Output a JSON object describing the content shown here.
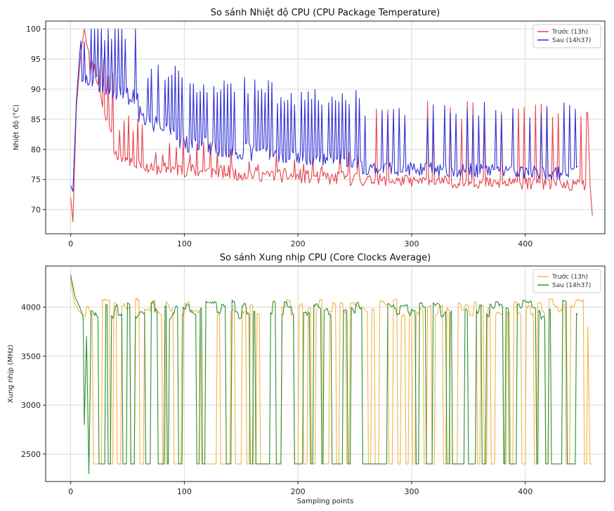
{
  "chart_data": [
    {
      "type": "line",
      "title": "So sánh Nhiệt độ CPU (CPU Package Temperature)",
      "xlabel": "",
      "ylabel": "Nhiệt độ (°C)",
      "xlim": [
        -22,
        470
      ],
      "ylim": [
        66,
        101.3
      ],
      "xticks": [
        0,
        100,
        200,
        300,
        400
      ],
      "yticks": [
        70,
        75,
        80,
        85,
        90,
        95,
        100
      ],
      "grid": true,
      "legend": "top-right",
      "series": [
        {
          "name": "Trước (13h)",
          "color": "#e8424b",
          "seed": 11,
          "n": 460,
          "decay_tau": 15,
          "segments": [
            {
              "start": 0,
              "ramp": [
                [
                  0,
                  72
                ],
                [
                  2,
                  68
                ],
                [
                  5,
                  87
                ],
                [
                  9,
                  96
                ],
                [
                  12,
                  100
                ],
                [
                  14,
                  98
                ]
              ]
            },
            {
              "start": 14,
              "base_from": 98,
              "base_to": 79,
              "base_end": 40,
              "spike": 95,
              "period": 3.2,
              "jitter": 1.0
            },
            {
              "start": 40,
              "base_from": 79,
              "base_to": 77,
              "base_end": 70,
              "spike": 86,
              "period": 4.0,
              "jitter": 1.0
            },
            {
              "start": 70,
              "base_from": 77,
              "base_to": 76,
              "base_end": 150,
              "spike": 82,
              "period": 6.0,
              "jitter": 1.2
            },
            {
              "start": 150,
              "base_from": 76,
              "base_to": 75,
              "base_end": 260,
              "spike": 80,
              "period": 8.0,
              "jitter": 1.2
            },
            {
              "start": 260,
              "base_from": 75,
              "base_to": 74,
              "base_end": 455,
              "spike": 88,
              "period": 5.0,
              "jitter": 1.0,
              "spike_prob": 0.55
            },
            {
              "start": 455,
              "ramp": [
                [
                  455,
                  86
                ],
                [
                  457,
                  74
                ],
                [
                  459,
                  69
                ]
              ]
            }
          ]
        },
        {
          "name": "Sau (14h37)",
          "color": "#2f2fd6",
          "seed": 23,
          "n": 447,
          "segments": [
            {
              "start": 0,
              "ramp": [
                [
                  0,
                  74
                ],
                [
                  2,
                  73
                ],
                [
                  5,
                  88
                ],
                [
                  8,
                  96
                ],
                [
                  10,
                  100
                ]
              ]
            },
            {
              "start": 10,
              "base_from": 92,
              "base_to": 88,
              "base_end": 60,
              "spike": 100,
              "period": 3.0,
              "jitter": 1.5,
              "hold_top": true
            },
            {
              "start": 60,
              "base_from": 86,
              "base_to": 81,
              "base_end": 100,
              "spike": 94,
              "period": 3.0,
              "jitter": 1.5
            },
            {
              "start": 100,
              "base_from": 81,
              "base_to": 79,
              "base_end": 180,
              "spike": 92,
              "period": 2.6,
              "jitter": 1.5
            },
            {
              "start": 180,
              "base_from": 79,
              "base_to": 78,
              "base_end": 255,
              "spike": 90,
              "period": 2.2,
              "jitter": 1.2
            },
            {
              "start": 255,
              "base_from": 77,
              "base_to": 76,
              "base_end": 447,
              "spike": 88,
              "period": 4.5,
              "jitter": 1.2,
              "spike_prob": 0.6
            }
          ]
        }
      ]
    },
    {
      "type": "line",
      "title": "So sánh Xung nhịp CPU (Core Clocks Average)",
      "xlabel": "Sampling points",
      "ylabel": "Xung nhịp (MHz)",
      "xlim": [
        -22,
        470
      ],
      "ylim": [
        2220,
        4420
      ],
      "xticks": [
        0,
        100,
        200,
        300,
        400
      ],
      "yticks": [
        2500,
        3000,
        3500,
        4000
      ],
      "grid": true,
      "legend": "top-right",
      "series": [
        {
          "name": "Trước (13h)",
          "color": "#f2b64a",
          "seed": 5,
          "n": 460,
          "segments": [
            {
              "start": 0,
              "ramp": [
                [
                  0,
                  4300
                ],
                [
                  3,
                  4050
                ],
                [
                  8,
                  3950
                ],
                [
                  14,
                  3900
                ]
              ]
            },
            {
              "start": 14,
              "low": 2400,
              "high": 4000,
              "period": 3.0,
              "jitter": 80,
              "high_prob": 0.55
            },
            {
              "start": 455,
              "ramp": [
                [
                  455,
                  3800
                ],
                [
                  457,
                  2400
                ],
                [
                  459,
                  2400
                ]
              ]
            }
          ]
        },
        {
          "name": "Sau (14h37)",
          "color": "#2f8f2f",
          "seed": 9,
          "n": 447,
          "segments": [
            {
              "start": 0,
              "ramp": [
                [
                  0,
                  4330
                ],
                [
                  4,
                  4100
                ],
                [
                  8,
                  4000
                ],
                [
                  11,
                  3900
                ],
                [
                  12,
                  2800
                ],
                [
                  14,
                  3700
                ],
                [
                  16,
                  2300
                ],
                [
                  18,
                  3800
                ]
              ]
            },
            {
              "start": 18,
              "low": 2400,
              "high": 3980,
              "period": 2.6,
              "jitter": 90,
              "high_prob": 0.6
            }
          ]
        }
      ]
    }
  ]
}
